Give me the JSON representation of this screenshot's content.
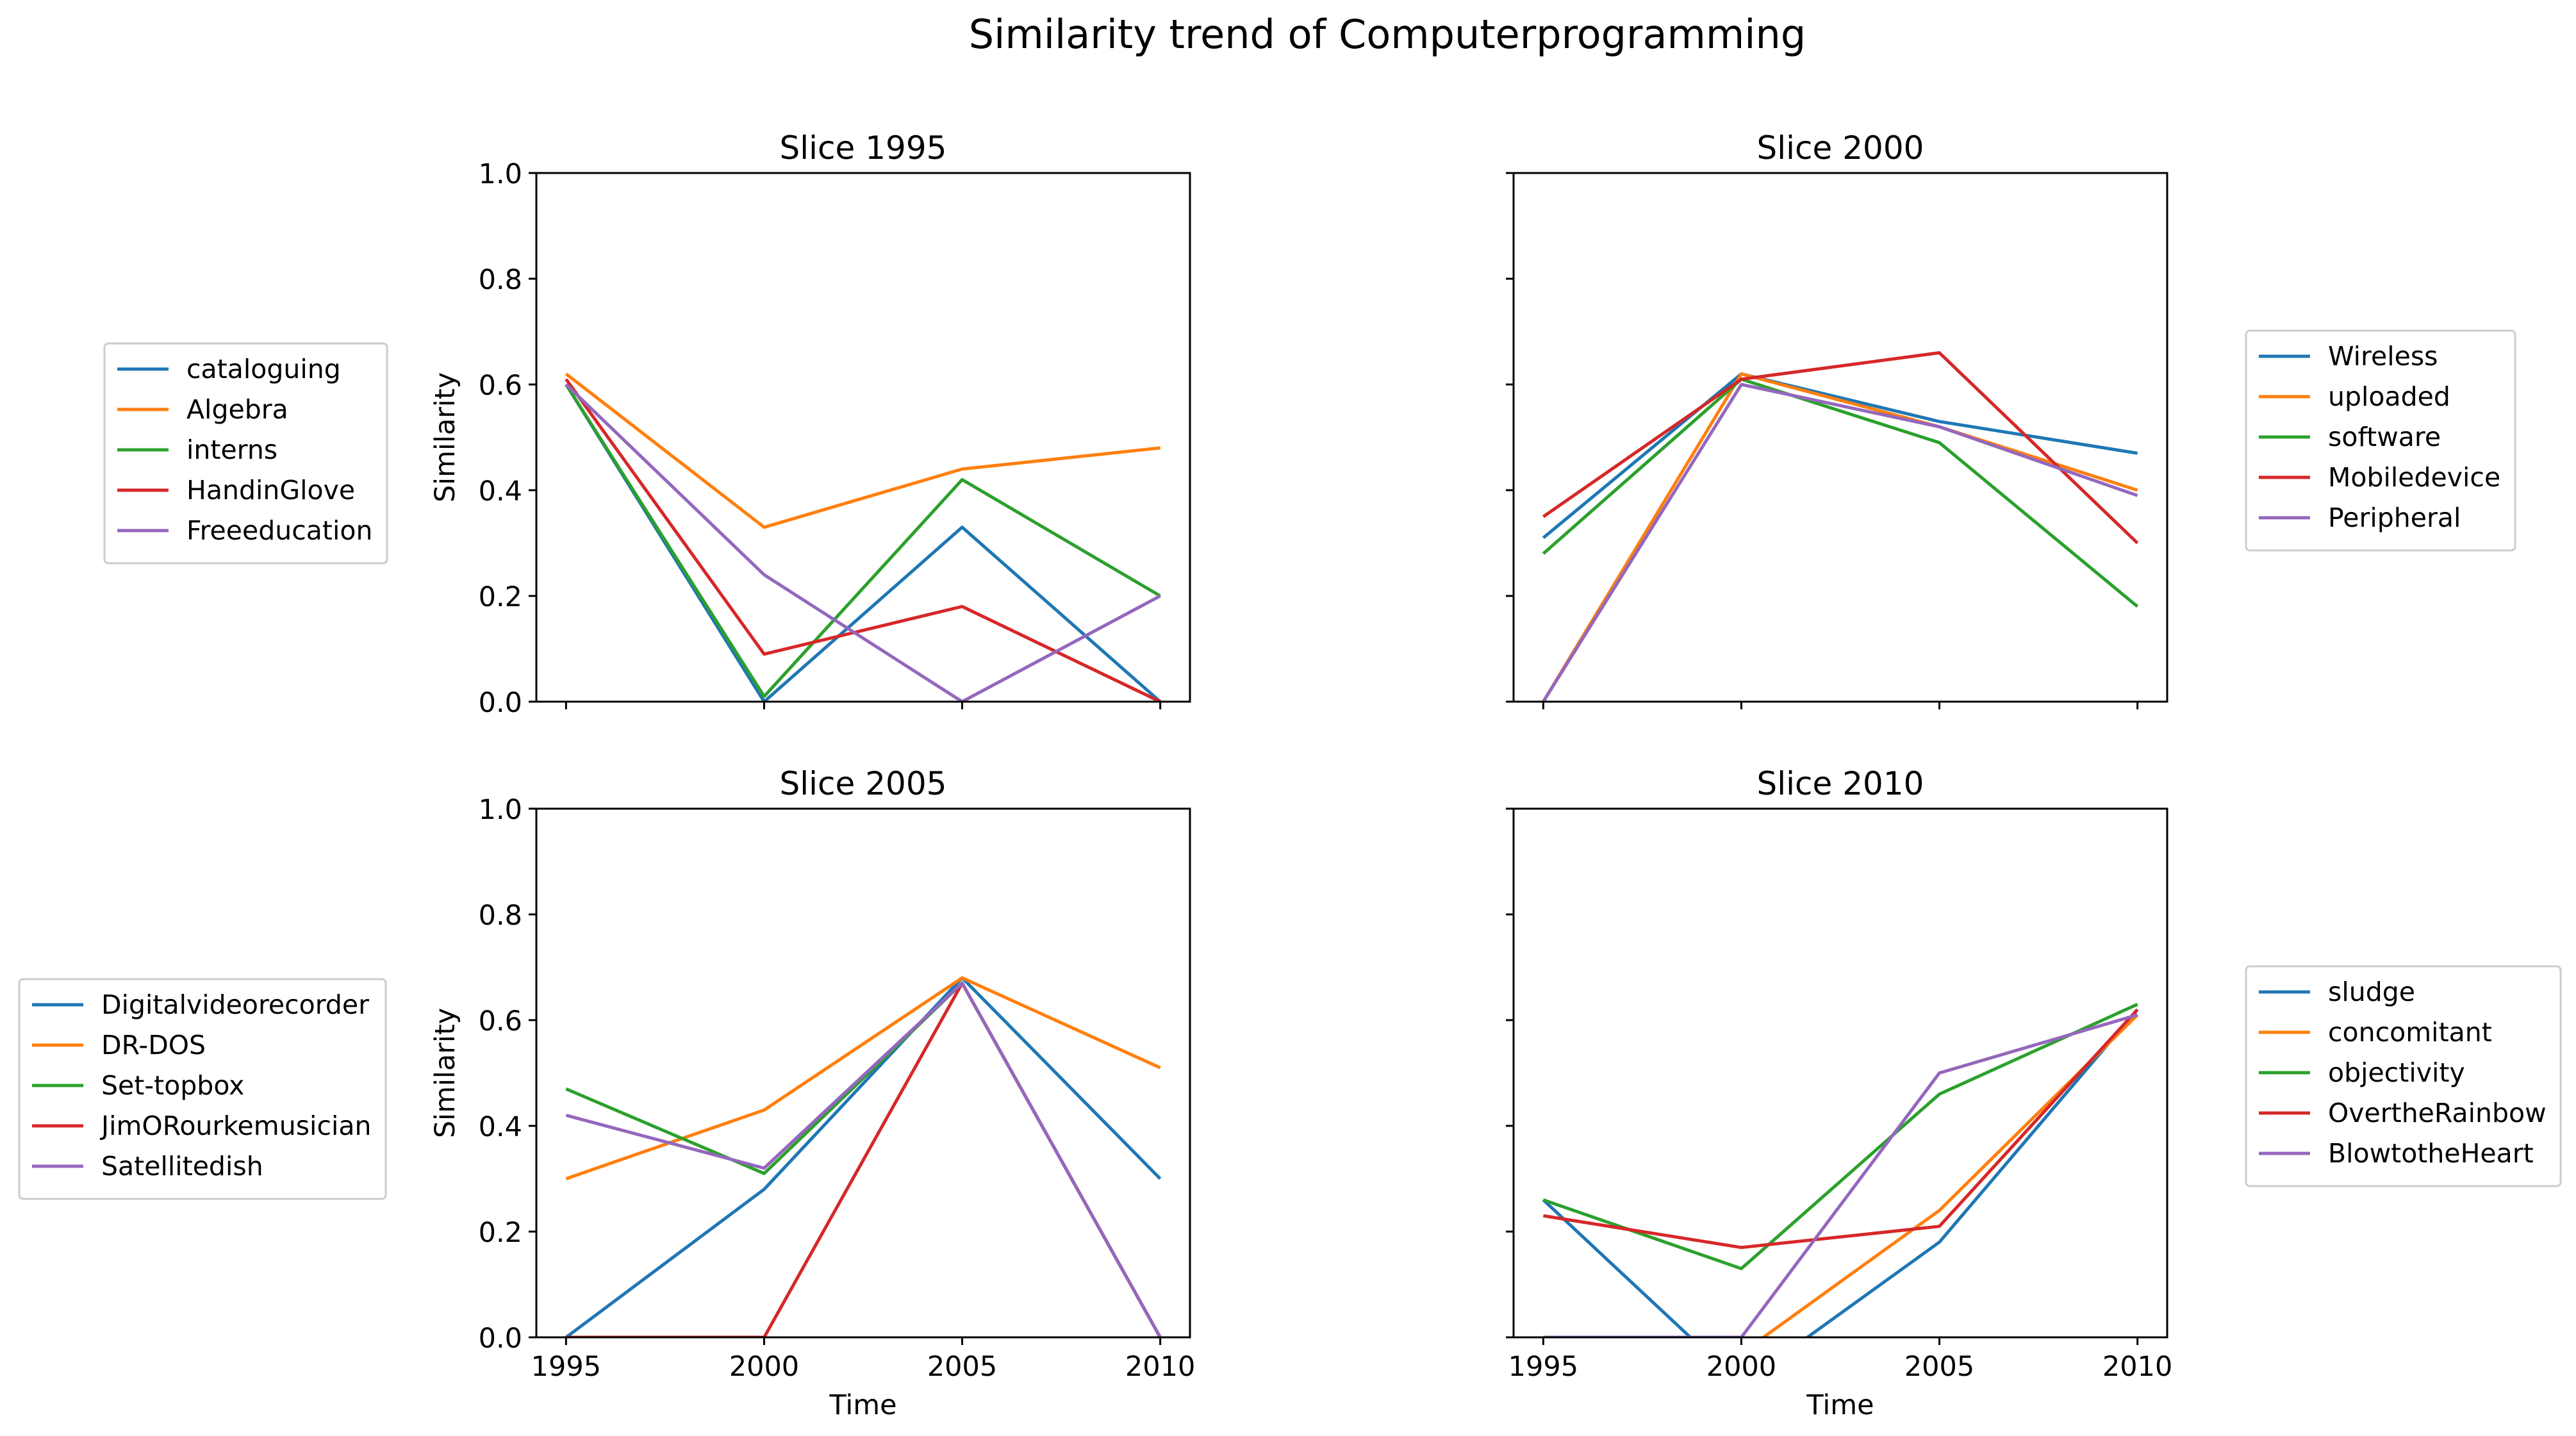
{
  "figure": {
    "title": "Similarity trend of Computerprogramming",
    "series_colors": [
      "#1f77b4",
      "#ff7f0e",
      "#2ca02c",
      "#d62728",
      "#9467bd"
    ]
  },
  "chart_data": [
    {
      "type": "line",
      "title": "Slice 1995",
      "xlabel": "",
      "ylabel": "Similarity",
      "x": [
        1995,
        2000,
        2005,
        2010
      ],
      "ylim": [
        0,
        1
      ],
      "y_ticks": [
        "0.0",
        "0.2",
        "0.4",
        "0.6",
        "0.8",
        "1.0"
      ],
      "x_ticks": [],
      "legend_position": "left",
      "series": [
        {
          "name": "cataloguing",
          "values": [
            0.6,
            0.0,
            0.33,
            0.0
          ]
        },
        {
          "name": "Algebra",
          "values": [
            0.62,
            0.33,
            0.44,
            0.48
          ]
        },
        {
          "name": "interns",
          "values": [
            0.6,
            0.01,
            0.42,
            0.2
          ]
        },
        {
          "name": "HandinGlove",
          "values": [
            0.61,
            0.09,
            0.18,
            0.0
          ]
        },
        {
          "name": "Freeeducation",
          "values": [
            0.6,
            0.24,
            0.0,
            0.2
          ]
        }
      ]
    },
    {
      "type": "line",
      "title": "Slice 2000",
      "xlabel": "",
      "ylabel": "",
      "x": [
        1995,
        2000,
        2005,
        2010
      ],
      "ylim": [
        0,
        1
      ],
      "y_ticks": [],
      "x_ticks": [],
      "legend_position": "right",
      "series": [
        {
          "name": "Wireless",
          "values": [
            0.31,
            0.62,
            0.53,
            0.47
          ]
        },
        {
          "name": "uploaded",
          "values": [
            0.0,
            0.62,
            0.52,
            0.4
          ]
        },
        {
          "name": "software",
          "values": [
            0.28,
            0.61,
            0.49,
            0.18
          ]
        },
        {
          "name": "Mobiledevice",
          "values": [
            0.35,
            0.61,
            0.66,
            0.3
          ]
        },
        {
          "name": "Peripheral",
          "values": [
            0.0,
            0.6,
            0.52,
            0.39
          ]
        }
      ]
    },
    {
      "type": "line",
      "title": "Slice 2005",
      "xlabel": "Time",
      "ylabel": "Similarity",
      "x": [
        1995,
        2000,
        2005,
        2010
      ],
      "ylim": [
        0,
        1
      ],
      "y_ticks": [
        "0.0",
        "0.2",
        "0.4",
        "0.6",
        "0.8",
        "1.0"
      ],
      "x_ticks": [
        "1995",
        "2000",
        "2005",
        "2010"
      ],
      "legend_position": "left",
      "series": [
        {
          "name": "Digitalvideorecorder",
          "values": [
            0.0,
            0.28,
            0.68,
            0.3
          ]
        },
        {
          "name": "DR-DOS",
          "values": [
            0.3,
            0.43,
            0.68,
            0.51
          ]
        },
        {
          "name": "Set-topbox",
          "values": [
            0.47,
            0.31,
            0.67,
            0.0
          ]
        },
        {
          "name": "JimORourkemusician",
          "values": [
            0.0,
            0.0,
            0.67,
            0.0
          ]
        },
        {
          "name": "Satellitedish",
          "values": [
            0.42,
            0.32,
            0.67,
            0.0
          ]
        }
      ]
    },
    {
      "type": "line",
      "title": "Slice 2010",
      "xlabel": "Time",
      "ylabel": "",
      "x": [
        1995,
        2000,
        2005,
        2010
      ],
      "ylim": [
        0,
        1
      ],
      "y_ticks": [],
      "x_ticks": [
        "1995",
        "2000",
        "2005",
        "2010"
      ],
      "legend_position": "right",
      "series": [
        {
          "name": "sludge",
          "values": [
            0.26,
            -0.09,
            0.18,
            0.62
          ]
        },
        {
          "name": "concomitant",
          "values": [
            0.0,
            -0.03,
            0.24,
            0.61
          ]
        },
        {
          "name": "objectivity",
          "values": [
            0.26,
            0.13,
            0.46,
            0.63
          ]
        },
        {
          "name": "OvertheRainbow",
          "values": [
            0.23,
            0.17,
            0.21,
            0.62
          ]
        },
        {
          "name": "BlowtotheHeart",
          "values": [
            0.0,
            0.0,
            0.5,
            0.61
          ]
        }
      ]
    }
  ]
}
